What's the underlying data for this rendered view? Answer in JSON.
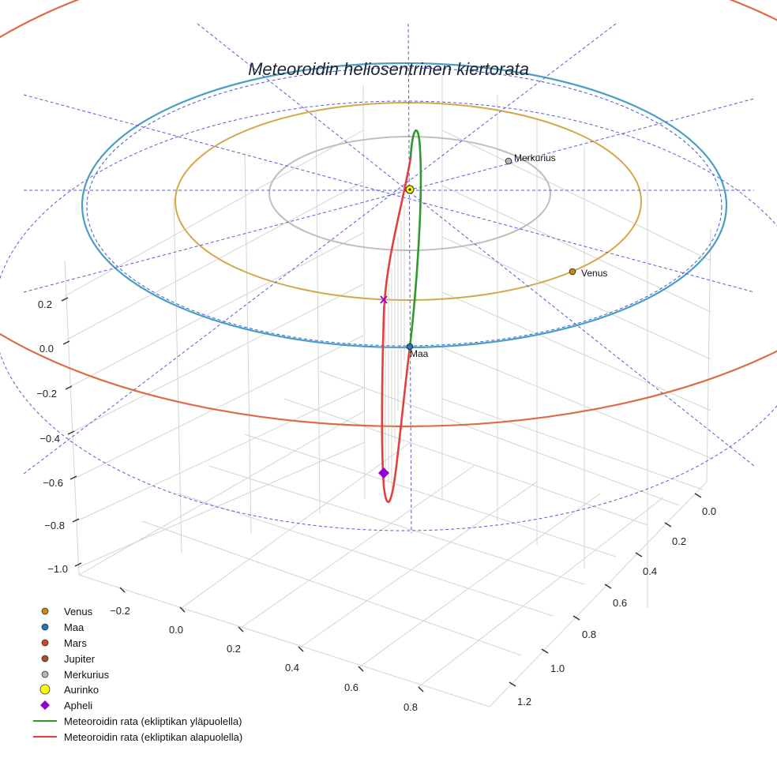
{
  "chart_data": {
    "type": "scatter",
    "title": "Meteoroidin heliosentrinen kiertorata",
    "projection": "3d",
    "axes": {
      "x": {
        "ticks": [
          "−0.2",
          "0.0",
          "0.2",
          "0.4",
          "0.6",
          "0.8"
        ]
      },
      "y": {
        "ticks": [
          "0.0",
          "0.2",
          "0.4",
          "0.6",
          "0.8",
          "1.0",
          "1.2"
        ]
      },
      "z": {
        "ticks": [
          "0.2",
          "0.0",
          "−0.2",
          "−0.4",
          "−0.6",
          "−0.8",
          "−1.0"
        ]
      }
    },
    "grid": true,
    "planets": [
      {
        "name": "Merkurius",
        "color": "#c0b0b4"
      },
      {
        "name": "Venus",
        "color": "#c98a10"
      },
      {
        "name": "Maa",
        "color": "#1f77b4"
      }
    ],
    "orbits": [
      {
        "body": "Merkurius",
        "color": "#c4bcbc"
      },
      {
        "body": "Venus",
        "color": "#d4a84a"
      },
      {
        "body": "Maa",
        "color": "#4a9ec4"
      },
      {
        "body": "Mars",
        "color": "#dd6b44"
      }
    ],
    "meteoroid": {
      "above_color": "#2e9a2e",
      "below_color": "#e04040"
    },
    "legend": {
      "placement": "bottom-left",
      "entries": [
        {
          "label": "Venus",
          "marker": "circle",
          "color": "#c98a10"
        },
        {
          "label": "Maa",
          "marker": "circle",
          "color": "#1f77b4"
        },
        {
          "label": "Mars",
          "marker": "circle",
          "color": "#d2452a"
        },
        {
          "label": "Jupiter",
          "marker": "circle",
          "color": "#a0522d"
        },
        {
          "label": "Merkurius",
          "marker": "circle",
          "color": "#c0b0b4"
        },
        {
          "label": "Aurinko",
          "marker": "circle-large",
          "color": "#ffff00"
        },
        {
          "label": "Apheli",
          "marker": "diamond",
          "color": "#9400d3"
        },
        {
          "label": "Meteoroidin rata (ekliptikan yläpuolella)",
          "marker": "line",
          "color": "#2e9a2e"
        },
        {
          "label": "Meteoroidin rata (ekliptikan alapuolella)",
          "marker": "line",
          "color": "#e04040"
        }
      ]
    }
  }
}
